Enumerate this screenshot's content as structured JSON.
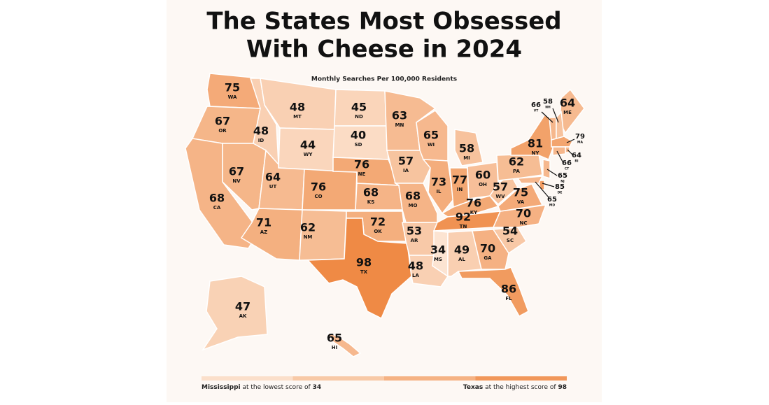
{
  "title_lines": [
    "The States Most Obsessed",
    "With Cheese in 2024"
  ],
  "subtitle": "Monthly Searches Per 100,000 Residents",
  "color_low": "#fce4d2",
  "color_high": "#ef8a45",
  "legend_colors": [
    "#fbdfca",
    "#f8c9a6",
    "#f5b283",
    "#f1975a"
  ],
  "states": [
    {
      "abbr": "WA",
      "value": 75
    },
    {
      "abbr": "OR",
      "value": 67
    },
    {
      "abbr": "CA",
      "value": 68
    },
    {
      "abbr": "ID",
      "value": 48
    },
    {
      "abbr": "NV",
      "value": 67
    },
    {
      "abbr": "MT",
      "value": 48
    },
    {
      "abbr": "WY",
      "value": 44
    },
    {
      "abbr": "UT",
      "value": 64
    },
    {
      "abbr": "CO",
      "value": 76
    },
    {
      "abbr": "AZ",
      "value": 71
    },
    {
      "abbr": "NM",
      "value": 62
    },
    {
      "abbr": "ND",
      "value": 45
    },
    {
      "abbr": "SD",
      "value": 40
    },
    {
      "abbr": "NE",
      "value": 76
    },
    {
      "abbr": "KS",
      "value": 68
    },
    {
      "abbr": "OK",
      "value": 72
    },
    {
      "abbr": "TX",
      "value": 98
    },
    {
      "abbr": "MN",
      "value": 63
    },
    {
      "abbr": "IA",
      "value": 57
    },
    {
      "abbr": "MO",
      "value": 68
    },
    {
      "abbr": "AR",
      "value": 53
    },
    {
      "abbr": "LA",
      "value": 48
    },
    {
      "abbr": "WI",
      "value": 65
    },
    {
      "abbr": "IL",
      "value": 73
    },
    {
      "abbr": "MI",
      "value": 58
    },
    {
      "abbr": "IN",
      "value": 77
    },
    {
      "abbr": "OH",
      "value": 60
    },
    {
      "abbr": "KY",
      "value": 76
    },
    {
      "abbr": "TN",
      "value": 92
    },
    {
      "abbr": "MS",
      "value": 34
    },
    {
      "abbr": "AL",
      "value": 49
    },
    {
      "abbr": "GA",
      "value": 70
    },
    {
      "abbr": "FL",
      "value": 86
    },
    {
      "abbr": "SC",
      "value": 54
    },
    {
      "abbr": "NC",
      "value": 70
    },
    {
      "abbr": "VA",
      "value": 75
    },
    {
      "abbr": "WV",
      "value": 57
    },
    {
      "abbr": "PA",
      "value": 62
    },
    {
      "abbr": "NY",
      "value": 81
    },
    {
      "abbr": "ME",
      "value": 64
    },
    {
      "abbr": "VT",
      "value": 66
    },
    {
      "abbr": "NH",
      "value": 58
    },
    {
      "abbr": "MA",
      "value": 79
    },
    {
      "abbr": "RI",
      "value": 64
    },
    {
      "abbr": "CT",
      "value": 66
    },
    {
      "abbr": "NJ",
      "value": 65
    },
    {
      "abbr": "DE",
      "value": 85
    },
    {
      "abbr": "MD",
      "value": 65
    },
    {
      "abbr": "AK",
      "value": 47
    },
    {
      "abbr": "HI",
      "value": 65
    }
  ],
  "legend": {
    "low_state": "Mississippi",
    "low_text": "at the lowest score of",
    "low_value": 34,
    "high_state": "Texas",
    "high_text": "at the highest score of",
    "high_value": 98
  }
}
